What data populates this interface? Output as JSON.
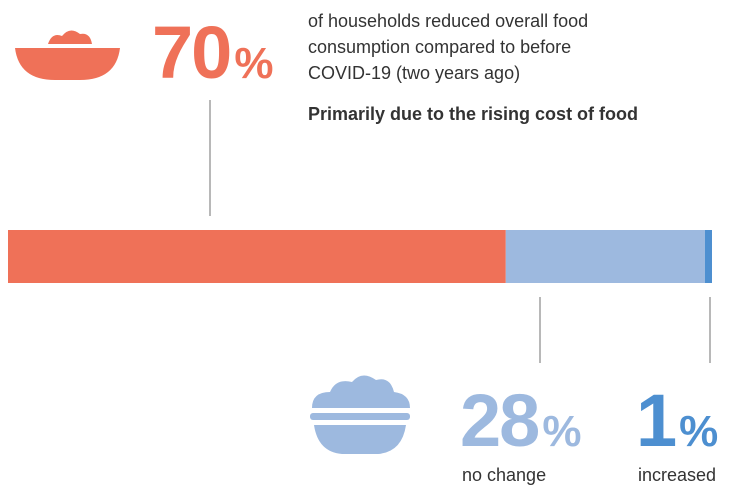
{
  "chart_data": {
    "type": "stacked_bar",
    "values": [
      70,
      28,
      1
    ],
    "value_labels": [
      "70%",
      "28%",
      "1%"
    ],
    "colors": [
      "#ef7158",
      "#9db9df",
      "#4d8fd0"
    ],
    "labels": [
      null,
      "no change",
      "increased"
    ],
    "xlim": [
      0,
      99
    ],
    "description": [
      "of households reduced overall food",
      "consumption compared to before",
      "COVID-19 (two years ago)"
    ],
    "note": "Primarily due to the rising cost of food"
  }
}
